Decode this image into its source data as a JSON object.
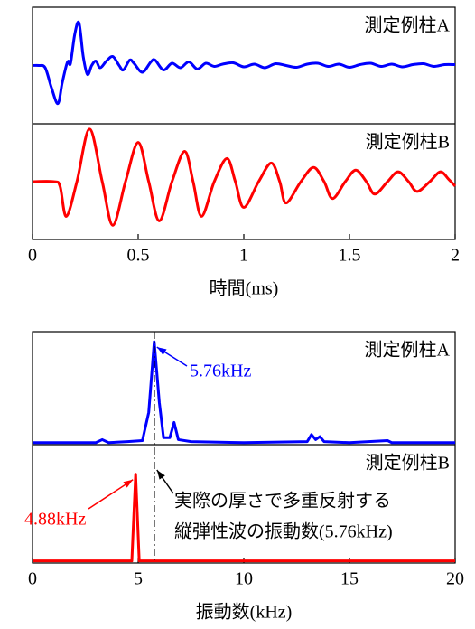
{
  "chart_data": [
    {
      "type": "line",
      "xlabel": "時間(ms)",
      "xlim": [
        0,
        2
      ],
      "xticks": [
        0,
        0.5,
        1,
        1.5,
        2
      ],
      "series": [
        {
          "name": "測定例柱A",
          "color": "#0000ff",
          "ylim": [
            -1.3,
            1.3
          ],
          "x": [
            0,
            0.03,
            0.06,
            0.09,
            0.12,
            0.14,
            0.16,
            0.17,
            0.18,
            0.2,
            0.22,
            0.24,
            0.26,
            0.28,
            0.3,
            0.32,
            0.35,
            0.38,
            0.41,
            0.43,
            0.46,
            0.48,
            0.52,
            0.56,
            0.58,
            0.62,
            0.66,
            0.7,
            0.74,
            0.78,
            0.82,
            0.86,
            0.9,
            0.95,
            1.0,
            1.05,
            1.1,
            1.15,
            1.2,
            1.25,
            1.3,
            1.35,
            1.4,
            1.45,
            1.5,
            1.55,
            1.6,
            1.65,
            1.7,
            1.75,
            1.8,
            1.85,
            1.9,
            1.95,
            2.0
          ],
          "values": [
            0,
            0,
            -0.05,
            -0.5,
            -0.85,
            -0.4,
            0,
            0.1,
            0.05,
            0.7,
            0.95,
            0.2,
            -0.2,
            0,
            0.1,
            -0.05,
            0.1,
            0.2,
            0,
            -0.1,
            0.12,
            0.05,
            -0.15,
            0.08,
            0.12,
            -0.1,
            0.05,
            -0.05,
            0.08,
            -0.08,
            0.05,
            -0.02,
            0.03,
            0.06,
            -0.03,
            0.03,
            -0.05,
            0.04,
            0,
            -0.04,
            0.03,
            0.05,
            -0.02,
            0.03,
            -0.04,
            0.02,
            0.05,
            -0.02,
            0.03,
            -0.03,
            0.02,
            0.04,
            -0.02,
            0.02,
            0.02
          ]
        },
        {
          "name": "測定例柱B",
          "color": "#ff0000",
          "ylim": [
            -1.3,
            1.3
          ],
          "x": [
            0,
            0.1,
            0.13,
            0.16,
            0.21,
            0.27,
            0.33,
            0.38,
            0.44,
            0.5,
            0.55,
            0.6,
            0.66,
            0.72,
            0.76,
            0.8,
            0.86,
            0.92,
            0.96,
            1.0,
            1.07,
            1.13,
            1.17,
            1.2,
            1.27,
            1.33,
            1.38,
            1.42,
            1.48,
            1.53,
            1.58,
            1.62,
            1.68,
            1.73,
            1.78,
            1.82,
            1.88,
            1.93,
            1.97,
            2.0
          ],
          "values": [
            0,
            0,
            -0.1,
            -0.78,
            0,
            1.18,
            0,
            -0.98,
            0,
            0.88,
            0,
            -0.88,
            0,
            0.68,
            0,
            -0.78,
            0,
            0.52,
            0,
            -0.58,
            0,
            0.42,
            0,
            -0.48,
            0,
            0.32,
            0,
            -0.38,
            0,
            0.26,
            0,
            -0.28,
            0,
            0.22,
            0,
            -0.22,
            0,
            0.22,
            0.05,
            -0.1
          ]
        }
      ]
    },
    {
      "type": "line",
      "xlabel": "振動数(kHz)",
      "xlim": [
        0,
        20
      ],
      "xticks": [
        0,
        5,
        10,
        15,
        20
      ],
      "vline": 5.76,
      "vline_label": [
        "実際の厚さで多重反射する",
        "縦弾性波の振動数(5.76kHz)"
      ],
      "series": [
        {
          "name": "測定例柱A",
          "color": "#0000ff",
          "ylim": [
            -0.02,
            1.1
          ],
          "peak_label": "5.76kHz",
          "x": [
            0,
            3,
            3.3,
            3.6,
            4.5,
            5.2,
            5.5,
            5.76,
            6.0,
            6.2,
            6.5,
            6.7,
            6.9,
            7.5,
            10,
            13,
            13.2,
            13.4,
            13.6,
            13.8,
            15,
            16.8,
            17,
            20
          ],
          "values": [
            0,
            0,
            0.03,
            0,
            0.01,
            0.02,
            0.3,
            1.0,
            0.4,
            0.05,
            0.05,
            0.2,
            0.03,
            0.01,
            0,
            0.01,
            0.08,
            0.03,
            0.06,
            0.01,
            0,
            0.02,
            0,
            0
          ]
        },
        {
          "name": "測定例柱B",
          "color": "#ff0000",
          "ylim": [
            -0.02,
            1.1
          ],
          "peak_label": "4.88kHz",
          "x": [
            0,
            4.7,
            4.88,
            5.05,
            20
          ],
          "values": [
            0,
            0,
            0.82,
            0,
            0
          ]
        }
      ]
    }
  ]
}
